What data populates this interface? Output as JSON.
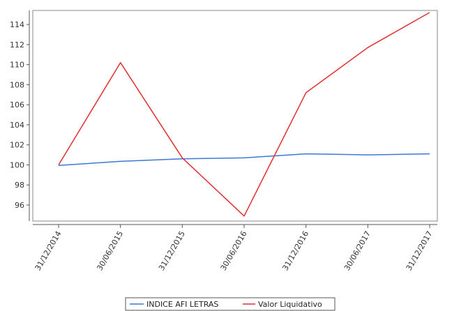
{
  "chart_data": {
    "type": "line",
    "title": "",
    "xlabel": "",
    "ylabel": "",
    "categories": [
      "31/12/2014",
      "30/06/2015",
      "31/12/2015",
      "30/06/2016",
      "31/12/2016",
      "30/06/2017",
      "31/12/2017"
    ],
    "y_ticks": [
      "96",
      "98",
      "100",
      "102",
      "104",
      "106",
      "108",
      "110",
      "112",
      "114"
    ],
    "ylim": [
      94.4,
      115.4
    ],
    "grid": false,
    "legend_position": "bottom-center",
    "series": [
      {
        "name": "INDICE AFI LETRAS",
        "color": "#3c78d8",
        "values": [
          99.95,
          100.35,
          100.6,
          100.7,
          101.1,
          101.0,
          101.1
        ]
      },
      {
        "name": "Valor Liquidativo",
        "color": "#e03030",
        "values": [
          100.0,
          110.2,
          100.7,
          94.9,
          107.2,
          111.7,
          115.2
        ]
      }
    ]
  }
}
